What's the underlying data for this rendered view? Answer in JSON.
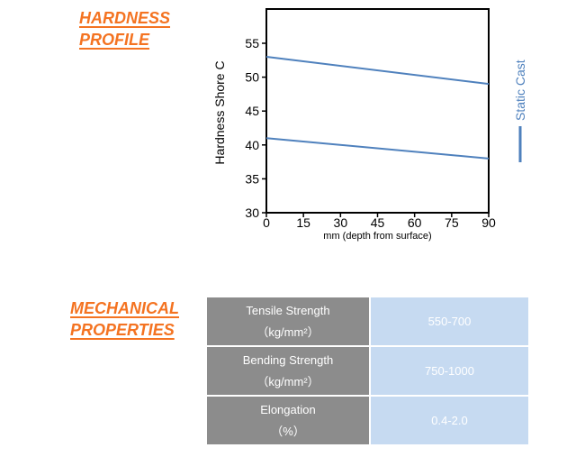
{
  "sections": {
    "hardness_title_line1": "HARDNESS",
    "hardness_title_line2": "PROFILE",
    "mechanical_title_line1": "MECHANICAL",
    "mechanical_title_line2": "PROPERTIES"
  },
  "colors": {
    "heading": "#f47321",
    "series": "#4f81bd",
    "label_cell": "#8c8c8c",
    "value_cell": "#c6daf1"
  },
  "chart_data": {
    "type": "line",
    "xlabel": "mm (depth from surface)",
    "ylabel": "Hardness Shore C",
    "xlim": [
      0,
      90
    ],
    "ylim": [
      30,
      55
    ],
    "xticks": [
      0,
      15,
      30,
      45,
      60,
      75,
      90
    ],
    "yticks": [
      30,
      35,
      40,
      45,
      50,
      55
    ],
    "grid": false,
    "legend_position": "right",
    "legend": "Static Cast",
    "series": [
      {
        "x": [
          0,
          90
        ],
        "values": [
          53,
          49
        ]
      },
      {
        "x": [
          0,
          90
        ],
        "values": [
          41,
          38
        ]
      }
    ]
  },
  "properties": [
    {
      "label": "Tensile Strength",
      "unit": "（kg/mm²）",
      "value": "550-700"
    },
    {
      "label": "Bending Strength",
      "unit": "（kg/mm²）",
      "value": "750-1000"
    },
    {
      "label": "Elongation",
      "unit": "（%）",
      "value": "0.4-2.0"
    }
  ]
}
